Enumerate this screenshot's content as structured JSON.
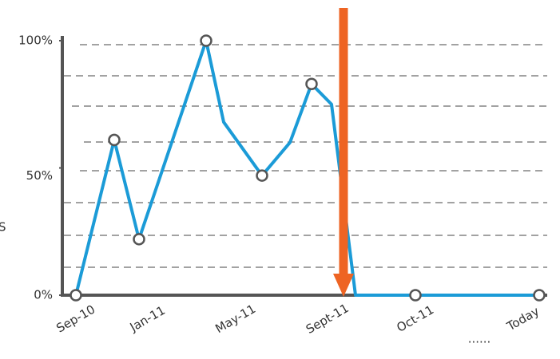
{
  "chart_data": {
    "type": "line",
    "ylabel": "S",
    "x": [
      0,
      48,
      79,
      163,
      185,
      233,
      268,
      295,
      320,
      350,
      425,
      580
    ],
    "series": [
      {
        "name": "",
        "color": "#1b9bd7",
        "values": [
          0,
          61,
          22,
          100,
          68,
          47,
          60,
          83,
          75,
          0,
          0,
          0
        ],
        "markers": [
          true,
          true,
          true,
          true,
          false,
          true,
          false,
          true,
          false,
          false,
          true,
          true
        ]
      }
    ],
    "xlim": [
      0,
      590
    ],
    "xticks": [
      {
        "value": 0,
        "label": "Sep-10"
      },
      {
        "value": 90,
        "label": "Jan-11"
      },
      {
        "value": 200,
        "label": "May-11"
      },
      {
        "value": 315,
        "label": "Sept-11"
      },
      {
        "value": 425,
        "label": "Oct-11"
      },
      {
        "value": 505,
        "label": "......"
      },
      {
        "value": 560,
        "label": "Today"
      }
    ],
    "ylim": [
      0,
      100
    ],
    "yticks": [
      {
        "value": 0,
        "label": "0%"
      },
      {
        "value": 50,
        "label": "50%"
      },
      {
        "value": 100,
        "label": "100%"
      }
    ],
    "arrow_color": "#ee6423"
  }
}
